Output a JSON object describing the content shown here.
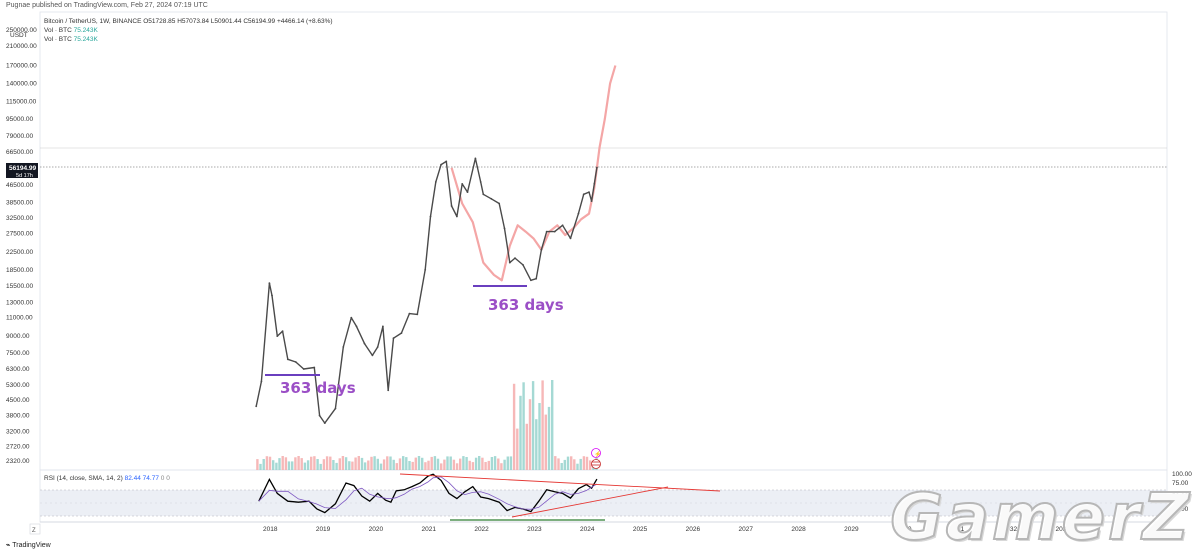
{
  "header": {
    "published": "Pugnae published on TradingView.com, Feb 27, 2024 07:19 UTC",
    "symbol_line": "Bitcoin / TetherUS, 1W, BINANCE  O51728.85  H57073.84  L50901.44  C56194.99  +4466.14 (+8.63%)",
    "vol_rows": [
      {
        "label": "Vol · BTC",
        "value": "75.243K"
      },
      {
        "label": "Vol · BTC",
        "value": "75.243K"
      }
    ]
  },
  "price_axis": {
    "currency": "USDT",
    "last_price": "56194.99",
    "countdown": "5d 17h"
  },
  "rsi": {
    "legend_prefix": "RSI (14, close, SMA, 14, 2)",
    "value1": "82.44",
    "value2": "74.77",
    "value3": "0",
    "value4": "0"
  },
  "annotations": [
    {
      "text": "363 days",
      "period": "2018"
    },
    {
      "text": "363 days",
      "period": "2022"
    }
  ],
  "footer": {
    "logo_text": "TradingView",
    "watermark": "GamerZ",
    "timezone_icon": "Z"
  },
  "colors": {
    "candles": "#4a4a4a",
    "projection": "#f4a6a6",
    "annotation": "#9b4fc6",
    "marker_line": "#6a3fbf",
    "trendline": "#e53935",
    "support_line": "#2e7d32",
    "rsi_line": "#000000",
    "rsi_sma": "#7e57c2",
    "volume_up": "#8ecfc9",
    "volume_down": "#f4a6a6"
  },
  "chart_data": [
    {
      "type": "line",
      "name": "price",
      "log_scale": true,
      "y_ticks": [
        "2320.00",
        "2720.00",
        "3200.00",
        "3800.00",
        "4500.00",
        "5300.00",
        "6300.00",
        "7500.00",
        "9000.00",
        "11000.00",
        "13000.00",
        "15500.00",
        "18500.00",
        "22500.00",
        "27500.00",
        "32500.00",
        "38500.00",
        "46500.00",
        "56194.99",
        "66500.00",
        "79000.00",
        "95000.00",
        "115000.00",
        "140000.00",
        "170000.00",
        "210000.00",
        "250000.00"
      ],
      "x_ticks": [
        "2018",
        "2019",
        "2020",
        "2021",
        "2022",
        "2023",
        "2024",
        "2025",
        "2026",
        "2027",
        "2028",
        "2029",
        "2030",
        "2031",
        "2032",
        "2033"
      ],
      "series": [
        {
          "values_t_price": [
            [
              2017.7,
              4200
            ],
            [
              2017.8,
              5500
            ],
            [
              2017.95,
              16000
            ],
            [
              2018.0,
              14000
            ],
            [
              2018.1,
              9000
            ],
            [
              2018.2,
              9500
            ],
            [
              2018.3,
              7000
            ],
            [
              2018.45,
              6800
            ],
            [
              2018.6,
              6300
            ],
            [
              2018.8,
              6400
            ],
            [
              2018.9,
              3800
            ],
            [
              2019.0,
              3500
            ],
            [
              2019.2,
              4100
            ],
            [
              2019.35,
              8000
            ],
            [
              2019.5,
              11000
            ],
            [
              2019.6,
              10000
            ],
            [
              2019.75,
              8300
            ],
            [
              2019.9,
              7300
            ],
            [
              2020.0,
              8000
            ],
            [
              2020.1,
              10000
            ],
            [
              2020.2,
              5000
            ],
            [
              2020.3,
              8800
            ],
            [
              2020.45,
              9300
            ],
            [
              2020.6,
              11500
            ],
            [
              2020.75,
              11400
            ],
            [
              2020.9,
              18500
            ],
            [
              2021.0,
              33000
            ],
            [
              2021.1,
              48000
            ],
            [
              2021.2,
              58000
            ],
            [
              2021.3,
              60000
            ],
            [
              2021.4,
              37000
            ],
            [
              2021.5,
              33000
            ],
            [
              2021.6,
              47000
            ],
            [
              2021.7,
              43000
            ],
            [
              2021.85,
              62000
            ],
            [
              2021.95,
              48000
            ],
            [
              2022.0,
              42000
            ],
            [
              2022.15,
              40000
            ],
            [
              2022.3,
              38000
            ],
            [
              2022.4,
              29000
            ],
            [
              2022.5,
              20000
            ],
            [
              2022.6,
              21000
            ],
            [
              2022.75,
              19500
            ],
            [
              2022.9,
              16500
            ],
            [
              2023.0,
              16800
            ],
            [
              2023.1,
              23000
            ],
            [
              2023.2,
              28000
            ],
            [
              2023.35,
              28000
            ],
            [
              2023.5,
              30000
            ],
            [
              2023.65,
              26000
            ],
            [
              2023.8,
              34000
            ],
            [
              2023.9,
              42000
            ],
            [
              2024.0,
              43000
            ],
            [
              2024.05,
              39000
            ],
            [
              2024.1,
              47000
            ],
            [
              2024.15,
              56194.99
            ]
          ]
        },
        {
          "values_t_price": [
            [
              2021.4,
              56000
            ],
            [
              2021.6,
              38000
            ],
            [
              2021.8,
              31000
            ],
            [
              2022.0,
              20000
            ],
            [
              2022.2,
              17500
            ],
            [
              2022.35,
              16500
            ],
            [
              2022.5,
              24000
            ],
            [
              2022.65,
              30000
            ],
            [
              2022.8,
              28000
            ],
            [
              2022.95,
              26000
            ],
            [
              2023.1,
              23000
            ],
            [
              2023.25,
              28000
            ],
            [
              2023.4,
              30000
            ],
            [
              2023.55,
              27000
            ],
            [
              2023.7,
              29000
            ],
            [
              2023.85,
              32000
            ],
            [
              2024.0,
              34000
            ],
            [
              2024.1,
              45000
            ],
            [
              2024.2,
              70000
            ],
            [
              2024.3,
              95000
            ],
            [
              2024.4,
              140000
            ],
            [
              2024.5,
              170000
            ]
          ]
        }
      ]
    },
    {
      "type": "line",
      "name": "rsi",
      "ylim": [
        0,
        100
      ],
      "y_ticks": [
        "100.00",
        "75.00",
        "50.00",
        "25.00"
      ],
      "series": [
        {
          "values_t_rsi": [
            [
              2017.75,
              40
            ],
            [
              2017.95,
              82
            ],
            [
              2018.1,
              55
            ],
            [
              2018.3,
              40
            ],
            [
              2018.5,
              38
            ],
            [
              2018.7,
              40
            ],
            [
              2018.85,
              25
            ],
            [
              2019.0,
              18
            ],
            [
              2019.2,
              35
            ],
            [
              2019.4,
              75
            ],
            [
              2019.55,
              70
            ],
            [
              2019.7,
              50
            ],
            [
              2019.85,
              40
            ],
            [
              2020.0,
              55
            ],
            [
              2020.15,
              42
            ],
            [
              2020.25,
              38
            ],
            [
              2020.35,
              60
            ],
            [
              2020.5,
              62
            ],
            [
              2020.65,
              68
            ],
            [
              2020.8,
              75
            ],
            [
              2020.95,
              88
            ],
            [
              2021.05,
              92
            ],
            [
              2021.2,
              80
            ],
            [
              2021.35,
              55
            ],
            [
              2021.5,
              45
            ],
            [
              2021.65,
              58
            ],
            [
              2021.8,
              68
            ],
            [
              2021.95,
              48
            ],
            [
              2022.1,
              45
            ],
            [
              2022.3,
              38
            ],
            [
              2022.45,
              22
            ],
            [
              2022.6,
              28
            ],
            [
              2022.75,
              25
            ],
            [
              2022.9,
              20
            ],
            [
              2023.05,
              40
            ],
            [
              2023.2,
              62
            ],
            [
              2023.35,
              58
            ],
            [
              2023.5,
              55
            ],
            [
              2023.65,
              46
            ],
            [
              2023.8,
              64
            ],
            [
              2023.95,
              72
            ],
            [
              2024.05,
              65
            ],
            [
              2024.15,
              82.44
            ]
          ]
        }
      ]
    }
  ]
}
